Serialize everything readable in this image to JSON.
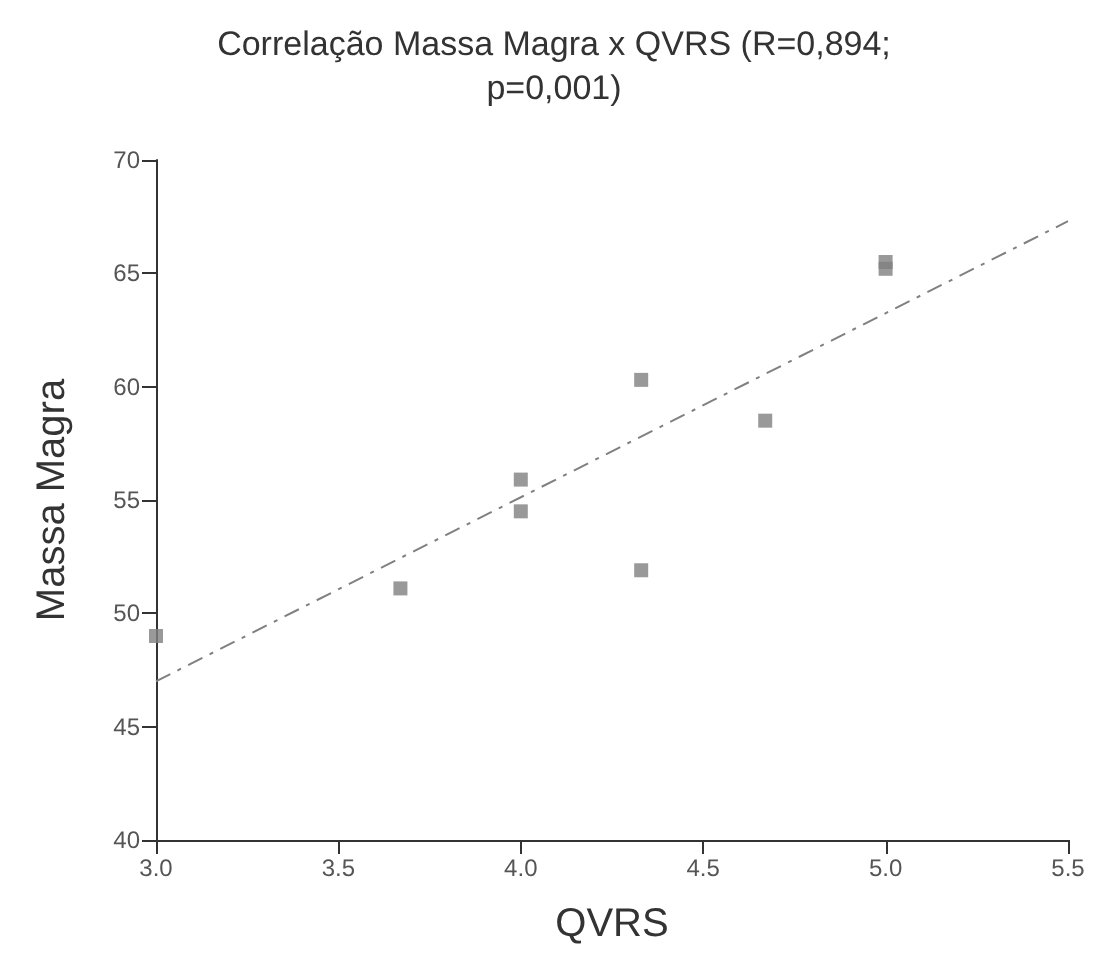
{
  "chart_data": {
    "type": "scatter",
    "title": "Correlação Massa Magra x QVRS (R=0,894;\np=0,001)",
    "xlabel": "QVRS",
    "ylabel": "Massa Magra",
    "marker": "square",
    "grid": false,
    "xlim": [
      3.0,
      5.5
    ],
    "xticks": [
      {
        "value": 3,
        "label": "3.0"
      },
      {
        "value": 3.5,
        "label": "3.5"
      },
      {
        "value": 4,
        "label": "4.0"
      },
      {
        "value": 4.5,
        "label": "4.5"
      },
      {
        "value": 5,
        "label": "5.0"
      },
      {
        "value": 5.5,
        "label": "5.5"
      }
    ],
    "ylim": [
      40,
      70
    ],
    "yticks": [
      40,
      45,
      50,
      55,
      60,
      65,
      70
    ],
    "series": [
      {
        "color": "#808080",
        "x": [
          3.0,
          3.67,
          4.0,
          4.0,
          4.33,
          4.33,
          4.67,
          5.0,
          5.0
        ],
        "values": [
          49.0,
          51.1,
          55.9,
          54.5,
          60.3,
          51.9,
          58.5,
          65.5,
          65.2
        ]
      },
      {
        "type": "line",
        "color": "#808080",
        "line_style": "dashed",
        "marker": "none",
        "x": [
          3.0,
          5.5
        ],
        "values": [
          47.0,
          67.3
        ]
      }
    ]
  }
}
